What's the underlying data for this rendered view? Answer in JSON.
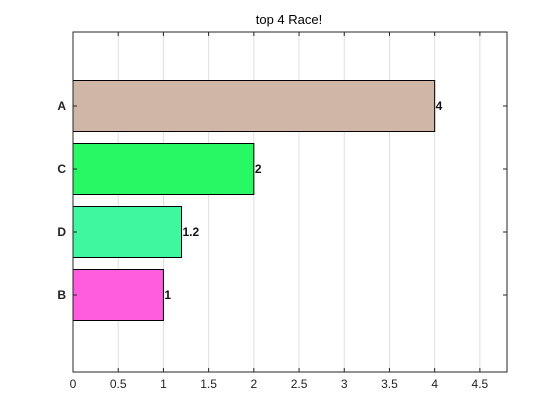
{
  "chart_data": {
    "type": "bar",
    "orientation": "horizontal",
    "title": "top 4 Race!",
    "xlabel": "",
    "ylabel": "",
    "categories": [
      "A",
      "C",
      "D",
      "B"
    ],
    "values": [
      4,
      2,
      1.2,
      1
    ],
    "value_labels": [
      "4",
      "2",
      "1.2",
      "1"
    ],
    "colors": [
      "#cfb6a6",
      "#27f864",
      "#3ef8a0",
      "#ff5ddd"
    ],
    "xlim": [
      0,
      4.8
    ],
    "xticks": [
      0,
      0.5,
      1,
      1.5,
      2,
      2.5,
      3,
      3.5,
      4,
      4.5
    ],
    "xtick_labels": [
      "0",
      "0.5",
      "1",
      "1.5",
      "2",
      "2.5",
      "3",
      "3.5",
      "4",
      "4.5"
    ],
    "grid": "vertical",
    "legend": "none"
  }
}
